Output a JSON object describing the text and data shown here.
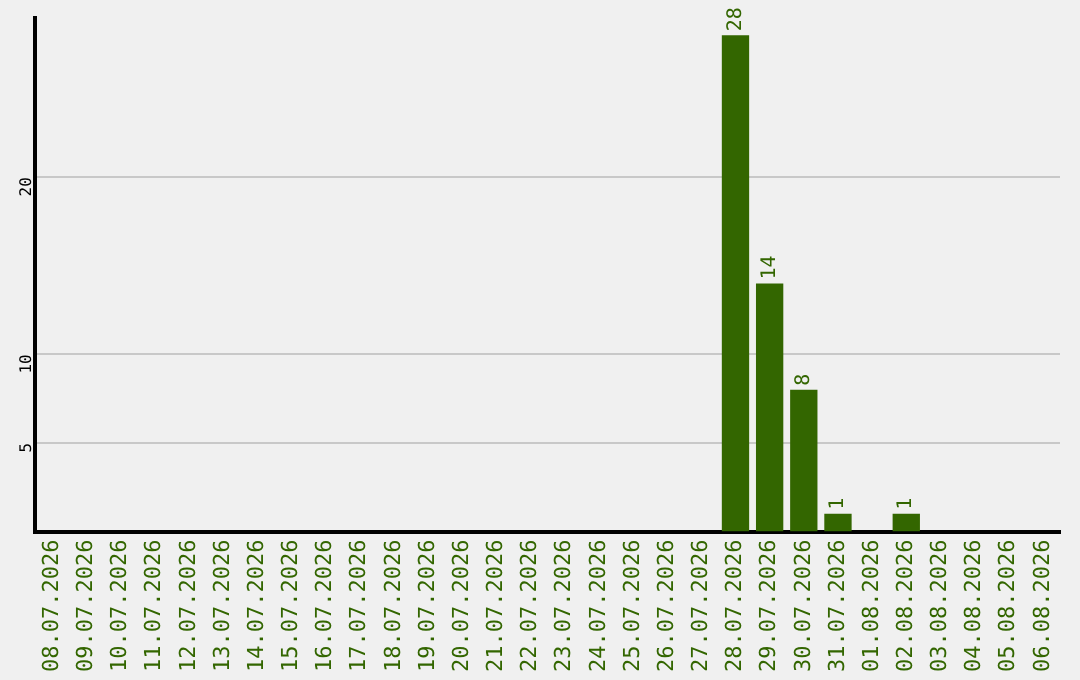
{
  "chart_data": {
    "type": "bar",
    "categories": [
      "08.07.2026",
      "09.07.2026",
      "10.07.2026",
      "11.07.2026",
      "12.07.2026",
      "13.07.2026",
      "14.07.2026",
      "15.07.2026",
      "16.07.2026",
      "17.07.2026",
      "18.07.2026",
      "19.07.2026",
      "20.07.2026",
      "21.07.2026",
      "22.07.2026",
      "23.07.2026",
      "24.07.2026",
      "25.07.2026",
      "26.07.2026",
      "27.07.2026",
      "28.07.2026",
      "29.07.2026",
      "30.07.2026",
      "31.07.2026",
      "01.08.2026",
      "02.08.2026",
      "03.08.2026",
      "04.08.2026",
      "05.08.2026",
      "06.08.2026"
    ],
    "values": [
      0,
      0,
      0,
      0,
      0,
      0,
      0,
      0,
      0,
      0,
      0,
      0,
      0,
      0,
      0,
      0,
      0,
      0,
      0,
      0,
      28,
      14,
      8,
      1,
      0,
      1,
      0,
      0,
      0,
      0
    ],
    "value_labels": [
      null,
      null,
      null,
      null,
      null,
      null,
      null,
      null,
      null,
      null,
      null,
      null,
      null,
      null,
      null,
      null,
      null,
      null,
      null,
      null,
      "28",
      "14",
      "8",
      "1",
      null,
      "1",
      null,
      null,
      null,
      null
    ],
    "color": "#336600",
    "ylim": [
      0,
      29
    ],
    "yticks": [
      5,
      10,
      20
    ],
    "grid": "y",
    "legend": false
  }
}
